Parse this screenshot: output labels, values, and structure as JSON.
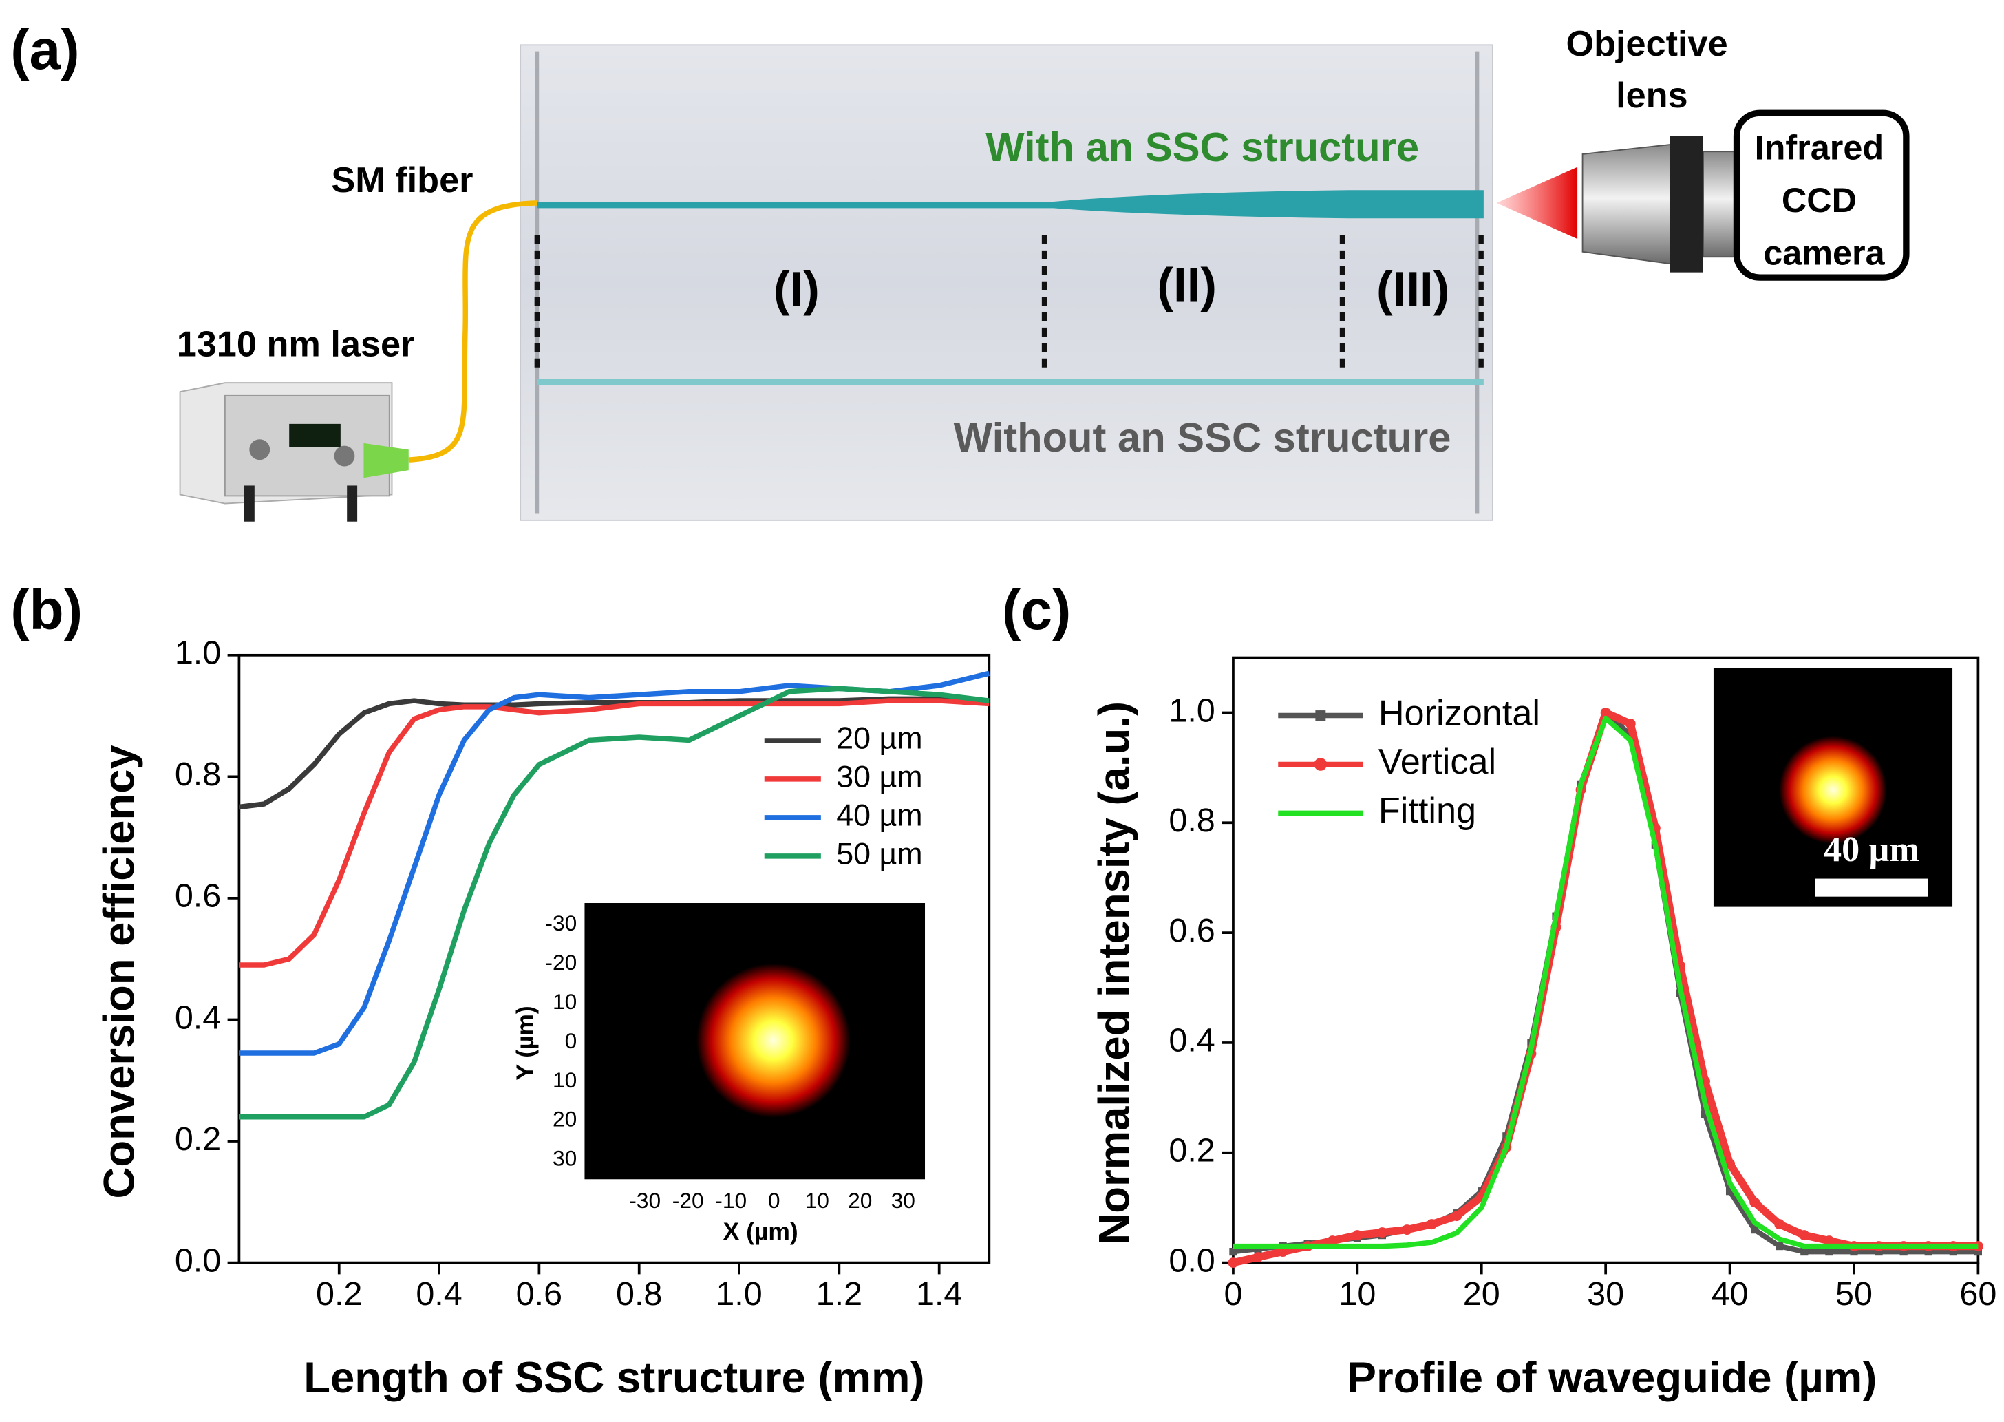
{
  "panels": [
    "(a)",
    "(b)",
    "(c)"
  ],
  "diagram": {
    "laser": "1310 nm laser",
    "fiber": "SM fiber",
    "with_ssc": "With an SSC structure",
    "without_ssc": "Without an SSC structure",
    "regions": [
      "(I)",
      "(II)",
      "(III)"
    ],
    "objective": [
      "Objective",
      "lens"
    ],
    "camera": [
      "Infrared",
      "CCD",
      "camera"
    ]
  },
  "chart_data": [
    {
      "type": "line",
      "xlabel": "Length of SSC structure (mm)",
      "ylabel": "Conversion efficiency",
      "xlim": [
        0,
        1.5
      ],
      "xticks": [
        0.2,
        0.4,
        0.6,
        0.8,
        {
          "value": 1,
          "label": "1.0"
        },
        1.2,
        1.4
      ],
      "ylim": [
        0,
        1
      ],
      "yticks": [
        {
          "value": 0,
          "label": "0.0"
        },
        0.2,
        0.4,
        0.6,
        0.8,
        {
          "value": 1,
          "label": "1.0"
        }
      ],
      "legend": "center right",
      "x": [
        0,
        0.05,
        0.1,
        0.15,
        0.2,
        0.25,
        0.3,
        0.35,
        0.4,
        0.45,
        0.5,
        0.55,
        0.6,
        0.7,
        0.8,
        0.9,
        1.0,
        1.1,
        1.2,
        1.3,
        1.4,
        1.5
      ],
      "series": [
        {
          "name": "20 µm",
          "color": "#3a3a3a",
          "values": [
            0.75,
            0.755,
            0.78,
            0.82,
            0.87,
            0.905,
            0.92,
            0.925,
            0.92,
            0.918,
            0.918,
            0.918,
            0.92,
            0.922,
            0.922,
            0.922,
            0.925,
            0.925,
            0.925,
            0.928,
            0.928,
            0.925
          ]
        },
        {
          "name": "30 µm",
          "color": "#f03a3a",
          "values": [
            0.49,
            0.49,
            0.5,
            0.54,
            0.63,
            0.74,
            0.84,
            0.895,
            0.91,
            0.915,
            0.915,
            0.91,
            0.905,
            0.91,
            0.92,
            0.92,
            0.92,
            0.92,
            0.92,
            0.925,
            0.925,
            0.92
          ]
        },
        {
          "name": "40 µm",
          "color": "#1f6fe0",
          "values": [
            0.345,
            0.345,
            0.345,
            0.345,
            0.36,
            0.42,
            0.53,
            0.65,
            0.77,
            0.86,
            0.91,
            0.93,
            0.935,
            0.93,
            0.935,
            0.94,
            0.94,
            0.95,
            0.945,
            0.94,
            0.95,
            0.97
          ]
        },
        {
          "name": "50 µm",
          "color": "#1fa060",
          "values": [
            0.24,
            0.24,
            0.24,
            0.24,
            0.24,
            0.24,
            0.26,
            0.33,
            0.45,
            0.58,
            0.69,
            0.77,
            0.82,
            0.86,
            0.865,
            0.86,
            0.9,
            0.94,
            0.945,
            0.94,
            0.935,
            0.925
          ]
        }
      ],
      "inset": {
        "xlabel": "X (µm)",
        "ylabel": "Y (µm)",
        "xticks": [
          -30,
          -20,
          -10,
          0,
          10,
          20,
          30
        ],
        "yticks": [
          -30,
          -20,
          10,
          0,
          10,
          20,
          30
        ]
      }
    },
    {
      "type": "line",
      "xlabel": "Profile of waveguide (µm)",
      "ylabel": "Normalized intensity (a.u.)",
      "xlim": [
        0,
        60
      ],
      "xticks": [
        0,
        10,
        20,
        30,
        40,
        50,
        60
      ],
      "ylim": [
        0,
        1.1
      ],
      "yticks": [
        {
          "value": 0,
          "label": "0.0"
        },
        0.2,
        0.4,
        0.6,
        0.8,
        {
          "value": 1,
          "label": "1.0"
        }
      ],
      "legend": "upper left",
      "x": [
        0,
        2,
        4,
        6,
        8,
        10,
        12,
        14,
        16,
        18,
        20,
        22,
        24,
        26,
        28,
        30,
        32,
        34,
        36,
        38,
        40,
        42,
        44,
        46,
        48,
        50,
        52,
        54,
        56,
        58,
        60
      ],
      "series": [
        {
          "name": "Horizontal",
          "color": "#555555",
          "marker": "square",
          "values": [
            0.02,
            0.025,
            0.03,
            0.035,
            0.04,
            0.045,
            0.05,
            0.06,
            0.07,
            0.09,
            0.13,
            0.23,
            0.4,
            0.63,
            0.87,
            1.0,
            0.96,
            0.76,
            0.49,
            0.27,
            0.13,
            0.06,
            0.03,
            0.02,
            0.02,
            0.02,
            0.02,
            0.02,
            0.02,
            0.02,
            0.02
          ]
        },
        {
          "name": "Vertical",
          "color": "#f03a3a",
          "marker": "circle",
          "values": [
            0.0,
            0.01,
            0.02,
            0.03,
            0.04,
            0.05,
            0.055,
            0.06,
            0.07,
            0.085,
            0.12,
            0.21,
            0.38,
            0.61,
            0.86,
            1.0,
            0.98,
            0.79,
            0.54,
            0.33,
            0.18,
            0.11,
            0.07,
            0.05,
            0.04,
            0.03,
            0.03,
            0.03,
            0.03,
            0.03,
            0.03
          ]
        },
        {
          "name": "Fitting",
          "color": "#22e022",
          "values": [
            0.03,
            0.03,
            0.03,
            0.03,
            0.03,
            0.03,
            0.03,
            0.032,
            0.037,
            0.054,
            0.1,
            0.21,
            0.39,
            0.63,
            0.87,
            0.99,
            0.95,
            0.76,
            0.5,
            0.29,
            0.145,
            0.073,
            0.043,
            0.03,
            0.03,
            0.03,
            0.03,
            0.03,
            0.03,
            0.03,
            0.03
          ]
        }
      ],
      "inset": {
        "scale_label": "40 µm"
      }
    }
  ]
}
